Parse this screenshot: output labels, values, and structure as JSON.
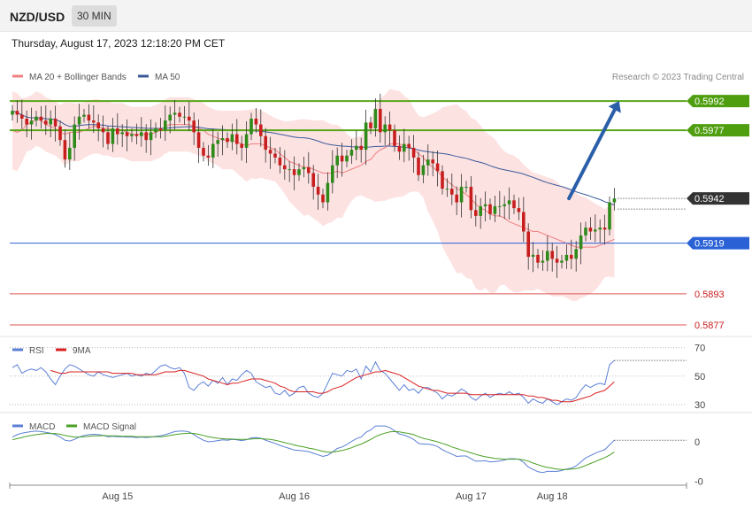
{
  "header": {
    "symbol": "NZD/USD",
    "timeframe": "30 MIN"
  },
  "datetime": "Thursday, August 17, 2023 12:18:20 PM CET",
  "copyright": "Research © 2023 Trading Central",
  "colors": {
    "bull": "#2e8b1a",
    "bear": "#c81e1e",
    "wick": "#333333",
    "bb_fill": "#fde2e2",
    "ma20": "#f08080",
    "ma50": "#3a5a9a",
    "resistance": "#58a61a",
    "support_blue": "#2a62d6",
    "support_red": "#e05555",
    "current": "#333333",
    "arrow": "#2a5ea8",
    "rsi": "#5b7fd6",
    "rsi_ma": "#d92020",
    "macd": "#5b7fd6",
    "macd_signal": "#4aa024"
  },
  "chart_data": [
    {
      "type": "candlestick",
      "panel": "price",
      "legend": [
        {
          "name": "MA 20 + Bollinger Bands",
          "color": "#f08080"
        },
        {
          "name": "MA 50",
          "color": "#3a5a9a"
        }
      ],
      "ylim": [
        0.5872,
        0.6003
      ],
      "x_labels": [
        "Aug 15",
        "Aug 16",
        "Aug 17",
        "Aug 18"
      ],
      "x_label_index": [
        22,
        59,
        96,
        113
      ],
      "levels": [
        {
          "value": 0.5992,
          "label": "0.5992",
          "kind": "resistance"
        },
        {
          "value": 0.5977,
          "label": "0.5977",
          "kind": "resistance"
        },
        {
          "value": 0.5942,
          "label": "0.5942",
          "kind": "current"
        },
        {
          "value": 0.5919,
          "label": "0.5919",
          "kind": "support_blue"
        },
        {
          "value": 0.5893,
          "label": "0.5893",
          "kind": "support_red"
        },
        {
          "value": 0.5877,
          "label": "0.5877",
          "kind": "support_red"
        }
      ],
      "forecast_arrow": {
        "from_index": 116.5,
        "from": 0.5942,
        "to_index": 127,
        "to": 0.5992
      },
      "close": [
        0.5987,
        0.5985,
        0.5983,
        0.598,
        0.5982,
        0.5984,
        0.5982,
        0.598,
        0.5983,
        0.5979,
        0.5972,
        0.5962,
        0.5968,
        0.598,
        0.5984,
        0.5985,
        0.5982,
        0.5981,
        0.5978,
        0.5976,
        0.597,
        0.5978,
        0.5975,
        0.5976,
        0.5974,
        0.5975,
        0.5974,
        0.5976,
        0.5972,
        0.5976,
        0.5978,
        0.5977,
        0.5982,
        0.5985,
        0.5986,
        0.5984,
        0.5984,
        0.5982,
        0.5976,
        0.5968,
        0.5964,
        0.5963,
        0.597,
        0.5972,
        0.5973,
        0.5971,
        0.5975,
        0.597,
        0.5968,
        0.5975,
        0.5983,
        0.598,
        0.5974,
        0.5967,
        0.5965,
        0.5963,
        0.5959,
        0.5957,
        0.5957,
        0.5954,
        0.5957,
        0.5958,
        0.5955,
        0.5948,
        0.5944,
        0.594,
        0.595,
        0.5959,
        0.5964,
        0.5961,
        0.5964,
        0.5967,
        0.5969,
        0.5967,
        0.5981,
        0.5978,
        0.5988,
        0.5976,
        0.598,
        0.5977,
        0.5969,
        0.5966,
        0.597,
        0.5968,
        0.5963,
        0.5954,
        0.5959,
        0.5962,
        0.596,
        0.5956,
        0.5947,
        0.5947,
        0.5944,
        0.594,
        0.5948,
        0.5948,
        0.5936,
        0.5933,
        0.5938,
        0.5939,
        0.5934,
        0.5938,
        0.5938,
        0.5939,
        0.5941,
        0.5937,
        0.5935,
        0.5925,
        0.5912,
        0.5913,
        0.5909,
        0.591,
        0.5915,
        0.5911,
        0.5909,
        0.591,
        0.5913,
        0.5911,
        0.5916,
        0.5923,
        0.5927,
        0.5925,
        0.5926,
        0.5927,
        0.5926,
        0.594,
        0.5942
      ],
      "ma20": [
        0.5977,
        0.5976,
        0.5977,
        0.598,
        0.5981,
        0.5983,
        0.5982,
        0.598,
        0.5979,
        0.5978,
        0.5976,
        0.5975,
        0.5976,
        0.5976,
        0.5976,
        0.5977,
        0.5978,
        0.5979,
        0.5979,
        0.5978,
        0.5978,
        0.5977,
        0.5977,
        0.5977,
        0.5976,
        0.5975,
        0.5975,
        0.5975,
        0.5975,
        0.5975,
        0.5976,
        0.5977,
        0.5979,
        0.598,
        0.598,
        0.598,
        0.598,
        0.598,
        0.5979,
        0.5978,
        0.5977,
        0.5975,
        0.5974,
        0.5973,
        0.5972,
        0.5972,
        0.5972,
        0.5971,
        0.597,
        0.5969,
        0.597,
        0.597,
        0.597,
        0.5969,
        0.5968,
        0.5967,
        0.5965,
        0.5963,
        0.5961,
        0.596,
        0.5959,
        0.5958,
        0.5958,
        0.5957,
        0.5956,
        0.5955,
        0.5955,
        0.5955,
        0.5956,
        0.5955,
        0.5956,
        0.5957,
        0.5958,
        0.5959,
        0.5961,
        0.5962,
        0.5965,
        0.5967,
        0.5968,
        0.597,
        0.597,
        0.597,
        0.5969,
        0.5969,
        0.5967,
        0.5965,
        0.5963,
        0.596,
        0.5958,
        0.5956,
        0.5953,
        0.5951,
        0.5949,
        0.5947,
        0.5946,
        0.5944,
        0.5942,
        0.5939,
        0.5937,
        0.5936,
        0.5934,
        0.5933,
        0.5933,
        0.5932,
        0.593,
        0.5929,
        0.5928,
        0.5927,
        0.5926,
        0.5925,
        0.5925,
        0.5924,
        0.5923,
        0.5922,
        0.5921,
        0.592,
        0.5919,
        0.5918,
        0.5917,
        0.5917,
        0.5917,
        0.5917,
        0.5917,
        0.5918,
        0.5919,
        0.592,
        0.5921
      ]
    },
    {
      "type": "line",
      "panel": "rsi",
      "legend": [
        {
          "name": "RSI",
          "color": "#5b7fd6"
        },
        {
          "name": "9MA",
          "color": "#d92020"
        }
      ],
      "ylim": [
        25,
        76
      ],
      "y_ticks": [
        70,
        50,
        30
      ],
      "rsi": [
        56,
        58,
        52,
        54,
        55,
        54,
        56,
        53,
        48,
        44,
        50,
        55,
        58,
        57,
        55,
        53,
        51,
        50,
        53,
        51,
        50,
        49,
        50,
        51,
        52,
        50,
        51,
        50,
        52,
        51,
        54,
        57,
        58,
        56,
        55,
        56,
        52,
        42,
        40,
        44,
        46,
        43,
        47,
        45,
        49,
        44,
        48,
        47,
        51,
        54,
        52,
        46,
        44,
        42,
        43,
        38,
        37,
        40,
        36,
        38,
        42,
        43,
        38,
        36,
        35,
        38,
        45,
        52,
        51,
        50,
        54,
        53,
        55,
        48,
        57,
        53,
        60,
        54,
        52,
        48,
        44,
        40,
        44,
        40,
        41,
        38,
        42,
        42,
        40,
        38,
        34,
        37,
        36,
        38,
        41,
        39,
        35,
        33,
        36,
        38,
        35,
        37,
        38,
        37,
        39,
        37,
        38,
        35,
        31,
        34,
        32,
        31,
        34,
        32,
        30,
        32,
        34,
        33,
        35,
        40,
        44,
        42,
        44,
        45,
        44,
        58,
        61
      ],
      "rsi_ma": [
        null,
        null,
        null,
        null,
        null,
        null,
        null,
        null,
        54,
        53,
        52,
        52,
        53,
        53,
        53,
        53,
        53,
        53,
        53,
        53,
        53,
        52,
        52,
        52,
        52,
        52,
        51,
        51,
        51,
        51,
        51,
        52,
        53,
        53,
        53,
        54,
        54,
        53,
        52,
        51,
        50,
        48,
        47,
        46,
        45,
        44,
        45,
        45,
        46,
        47,
        48,
        48,
        48,
        47,
        46,
        45,
        43,
        42,
        40,
        39,
        39,
        39,
        39,
        39,
        38,
        38,
        39,
        41,
        42,
        43,
        45,
        47,
        49,
        50,
        51,
        52,
        53,
        53,
        54,
        53,
        52,
        51,
        49,
        47,
        45,
        43,
        42,
        41,
        40,
        40,
        39,
        38,
        38,
        38,
        38,
        38,
        37,
        37,
        37,
        37,
        37,
        37,
        37,
        37,
        37,
        37,
        37,
        37,
        36,
        36,
        35,
        35,
        34,
        33,
        33,
        32,
        32,
        32,
        33,
        34,
        35,
        36,
        38,
        39,
        40,
        43,
        46
      ]
    },
    {
      "type": "line",
      "panel": "macd",
      "legend": [
        {
          "name": "MACD",
          "color": "#5b7fd6"
        },
        {
          "name": "MACD Signal",
          "color": "#4aa024"
        }
      ],
      "ylim": [
        -0.0011,
        0.00065
      ],
      "y_ticks": [
        {
          "value": 0,
          "label": "0"
        },
        {
          "value": -0.001,
          "label": "-0"
        }
      ],
      "macd": [
        0.00012,
        0.00018,
        0.00022,
        0.00024,
        0.00026,
        0.00027,
        0.00026,
        0.00024,
        0.00022,
        0.00018,
        0.00012,
        4e-05,
        2e-05,
        6e-05,
        0.00012,
        0.00016,
        0.00018,
        0.00019,
        0.00018,
        0.00016,
        0.00013,
        0.00014,
        0.00013,
        0.00013,
        0.00012,
        0.00012,
        0.00011,
        0.00012,
        0.00011,
        0.00012,
        0.00014,
        0.00015,
        0.00018,
        0.00022,
        0.00026,
        0.00027,
        0.00027,
        0.00025,
        0.00018,
        0.0001,
        4e-05,
        0.0,
        1e-05,
        3e-05,
        5e-05,
        4e-05,
        6e-05,
        5e-05,
        3e-05,
        5e-05,
        0.0001,
        0.00011,
        9e-05,
        4e-05,
        0.0,
        -4e-05,
        -9e-05,
        -0.00013,
        -0.00017,
        -0.00021,
        -0.00022,
        -0.00023,
        -0.00025,
        -0.00029,
        -0.00033,
        -0.00037,
        -0.00034,
        -0.00026,
        -0.00017,
        -0.00013,
        -7e-05,
        1e-05,
        8e-05,
        0.00012,
        0.00024,
        0.0003,
        0.0004,
        0.0004,
        0.0004,
        0.00036,
        0.00028,
        0.0002,
        0.00017,
        0.00012,
        6e-05,
        -4e-05,
        -6e-05,
        -6e-05,
        -8e-05,
        -0.00012,
        -0.0002,
        -0.00026,
        -0.00031,
        -0.00037,
        -0.00036,
        -0.00036,
        -0.00043,
        -0.00049,
        -0.00049,
        -0.00048,
        -0.00051,
        -0.0005,
        -0.00049,
        -0.00046,
        -0.00043,
        -0.00043,
        -0.00044,
        -0.00052,
        -0.00064,
        -0.0007,
        -0.00076,
        -0.00078,
        -0.00075,
        -0.00075,
        -0.00075,
        -0.00073,
        -0.00069,
        -0.00067,
        -0.00061,
        -0.00051,
        -0.00041,
        -0.00035,
        -0.00029,
        -0.00024,
        -0.0002,
        -8e-05,
        4e-05
      ],
      "signal": [
        5e-05,
        8e-05,
        0.00011,
        0.00014,
        0.00016,
        0.00018,
        0.0002,
        0.00021,
        0.00021,
        0.00021,
        0.00019,
        0.00016,
        0.00014,
        0.00012,
        0.00012,
        0.00013,
        0.00014,
        0.00015,
        0.00015,
        0.00016,
        0.00015,
        0.00015,
        0.00015,
        0.00014,
        0.00014,
        0.00014,
        0.00013,
        0.00013,
        0.00013,
        0.00013,
        0.00013,
        0.00013,
        0.00014,
        0.00016,
        0.00018,
        0.0002,
        0.00021,
        0.00022,
        0.00021,
        0.00019,
        0.00016,
        0.00013,
        0.00011,
        9e-05,
        8e-05,
        7e-05,
        7e-05,
        6e-05,
        6e-05,
        6e-05,
        7e-05,
        8e-05,
        8e-05,
        7e-05,
        6e-05,
        4e-05,
        1e-05,
        -2e-05,
        -5e-05,
        -8e-05,
        -0.00011,
        -0.00013,
        -0.00016,
        -0.00018,
        -0.00021,
        -0.00024,
        -0.00026,
        -0.00026,
        -0.00024,
        -0.00022,
        -0.00019,
        -0.00015,
        -0.0001,
        -6e-05,
        0.0,
        6e-05,
        0.00013,
        0.00018,
        0.00022,
        0.00025,
        0.00026,
        0.00025,
        0.00023,
        0.00021,
        0.00018,
        0.00013,
        9e-05,
        6e-05,
        3e-05,
        0.0,
        -4e-05,
        -8e-05,
        -0.00013,
        -0.00017,
        -0.00021,
        -0.00024,
        -0.00028,
        -0.00032,
        -0.00035,
        -0.00038,
        -0.0004,
        -0.00042,
        -0.00043,
        -0.00044,
        -0.00044,
        -0.00044,
        -0.00044,
        -0.00046,
        -0.00049,
        -0.00054,
        -0.00058,
        -0.00062,
        -0.00065,
        -0.00067,
        -0.00069,
        -0.0007,
        -0.0007,
        -0.00069,
        -0.00068,
        -0.00065,
        -0.0006,
        -0.00055,
        -0.0005,
        -0.00045,
        -0.0004,
        -0.00034,
        -0.00026
      ]
    }
  ]
}
